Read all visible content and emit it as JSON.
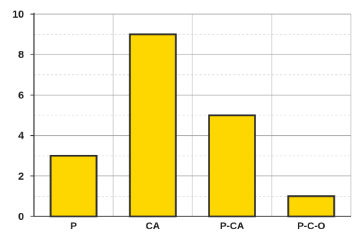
{
  "chart_data": {
    "type": "bar",
    "categories": [
      "P",
      "CA",
      "P-CA",
      "P-C-O"
    ],
    "values": [
      3,
      9,
      5,
      1
    ],
    "ylim": [
      0,
      10
    ],
    "yticks": [
      "0",
      "2",
      "4",
      "6",
      "8",
      "10"
    ],
    "grid": true,
    "colors": {
      "bar_fill": "#FFD700",
      "bar_stroke": "#2b2b2b",
      "grid": "#9a9a9a",
      "axis": "#3a3a3a"
    }
  }
}
